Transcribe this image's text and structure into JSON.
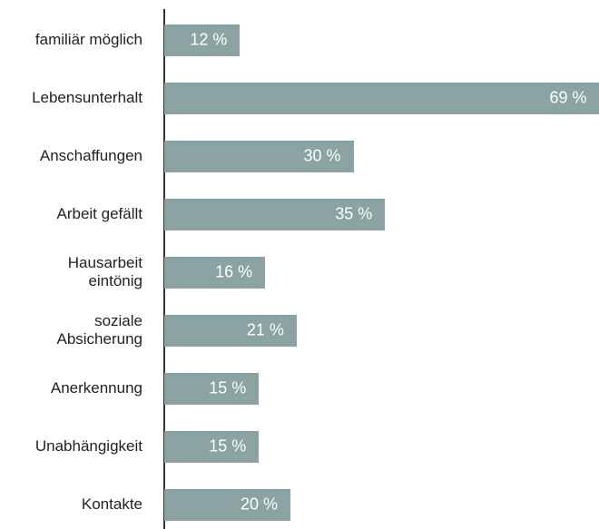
{
  "chart_data": {
    "type": "bar",
    "orientation": "horizontal",
    "categories": [
      "familiär möglich",
      "Lebensunterhalt",
      "Anschaffungen",
      "Arbeit gefällt",
      "Hausarbeit\neintönig",
      "soziale\nAbsicherung",
      "Anerkennung",
      "Unabhängigkeit",
      "Kontakte"
    ],
    "values": [
      12,
      69,
      30,
      35,
      16,
      21,
      15,
      15,
      20
    ],
    "value_labels": [
      "12 %",
      "69 %",
      "30 %",
      "35 %",
      "16 %",
      "21 %",
      "15 %",
      "15 %",
      "20 %"
    ],
    "color": "#8ba3a3"
  }
}
